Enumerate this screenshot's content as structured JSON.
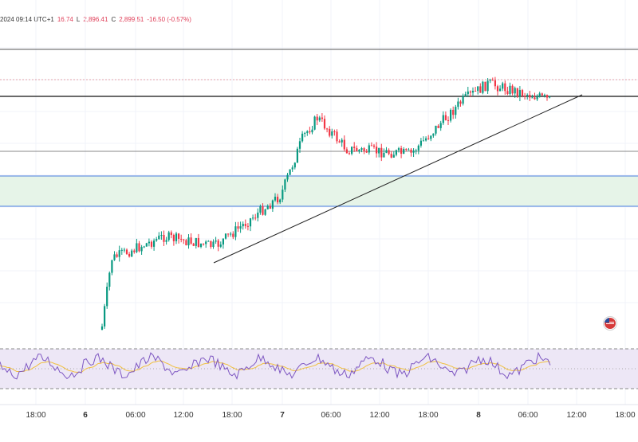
{
  "header": {
    "timestamp_fragment": "2024 09:14 UTC+1",
    "open_fragment": "16.74",
    "low_label": "L",
    "low_value": "2,896.41",
    "close_label": "C",
    "close_value": "2,899.51",
    "change": "-16.50 (-0.57%)"
  },
  "chart_data": [
    {
      "type": "candlestick",
      "title": "",
      "x_labels": [
        "18:00",
        "6",
        "06:00",
        "12:00",
        "18:00",
        "7",
        "06:00",
        "12:00",
        "18:00",
        "8",
        "06:00",
        "12:00",
        "18:00"
      ],
      "day_labels": [
        "6",
        "7",
        "8"
      ],
      "series": [
        {
          "name": "",
          "trend": "uptrend from day 6 ~00:00 through day 8 ~08:00",
          "anchor_points": [
            {
              "x": "6 ~02:00",
              "y_rel": 0.0
            },
            {
              "x": "6 ~02:30",
              "y_rel": 0.28
            },
            {
              "x": "6 ~12:00",
              "y_rel": 0.37
            },
            {
              "x": "6 ~16:00",
              "y_rel": 0.33
            },
            {
              "x": "7 ~00:00",
              "y_rel": 0.54
            },
            {
              "x": "7 ~01:00",
              "y_rel": 0.78
            },
            {
              "x": "7 ~04:00",
              "y_rel": 0.86
            },
            {
              "x": "7 ~08:00",
              "y_rel": 0.73
            },
            {
              "x": "7 ~15:00",
              "y_rel": 0.71
            },
            {
              "x": "7 ~22:00",
              "y_rel": 0.93
            },
            {
              "x": "8 ~00:30",
              "y_rel": 1.0
            },
            {
              "x": "8 ~08:00",
              "y_rel": 0.93
            }
          ]
        }
      ],
      "last_close": 2899.51,
      "colors": {
        "up": "#089981",
        "down": "#f23645"
      },
      "horizontal_levels": [
        {
          "name": "level-1",
          "color": "#555555",
          "style": "solid"
        },
        {
          "name": "level-2",
          "color": "#e3a0a8",
          "style": "dotted"
        },
        {
          "name": "level-3",
          "color": "#111111",
          "style": "solid"
        },
        {
          "name": "level-4",
          "color": "#888888",
          "style": "solid"
        },
        {
          "name": "support-zone-top",
          "color": "#4a7fe0",
          "style": "solid"
        },
        {
          "name": "support-zone-bottom",
          "color": "#4a7fe0",
          "style": "solid"
        }
      ],
      "zone": {
        "fill": "#e6f4e8"
      },
      "trendline": {
        "color": "#222222"
      },
      "grid": true
    },
    {
      "type": "line",
      "title": "",
      "panel": "oscillator",
      "series": [
        {
          "name": "",
          "color": "#7e57c2"
        },
        {
          "name": "",
          "color": "#f0c040"
        }
      ],
      "band_fill": "#ede7f6",
      "band_lines": "dashed"
    }
  ]
}
